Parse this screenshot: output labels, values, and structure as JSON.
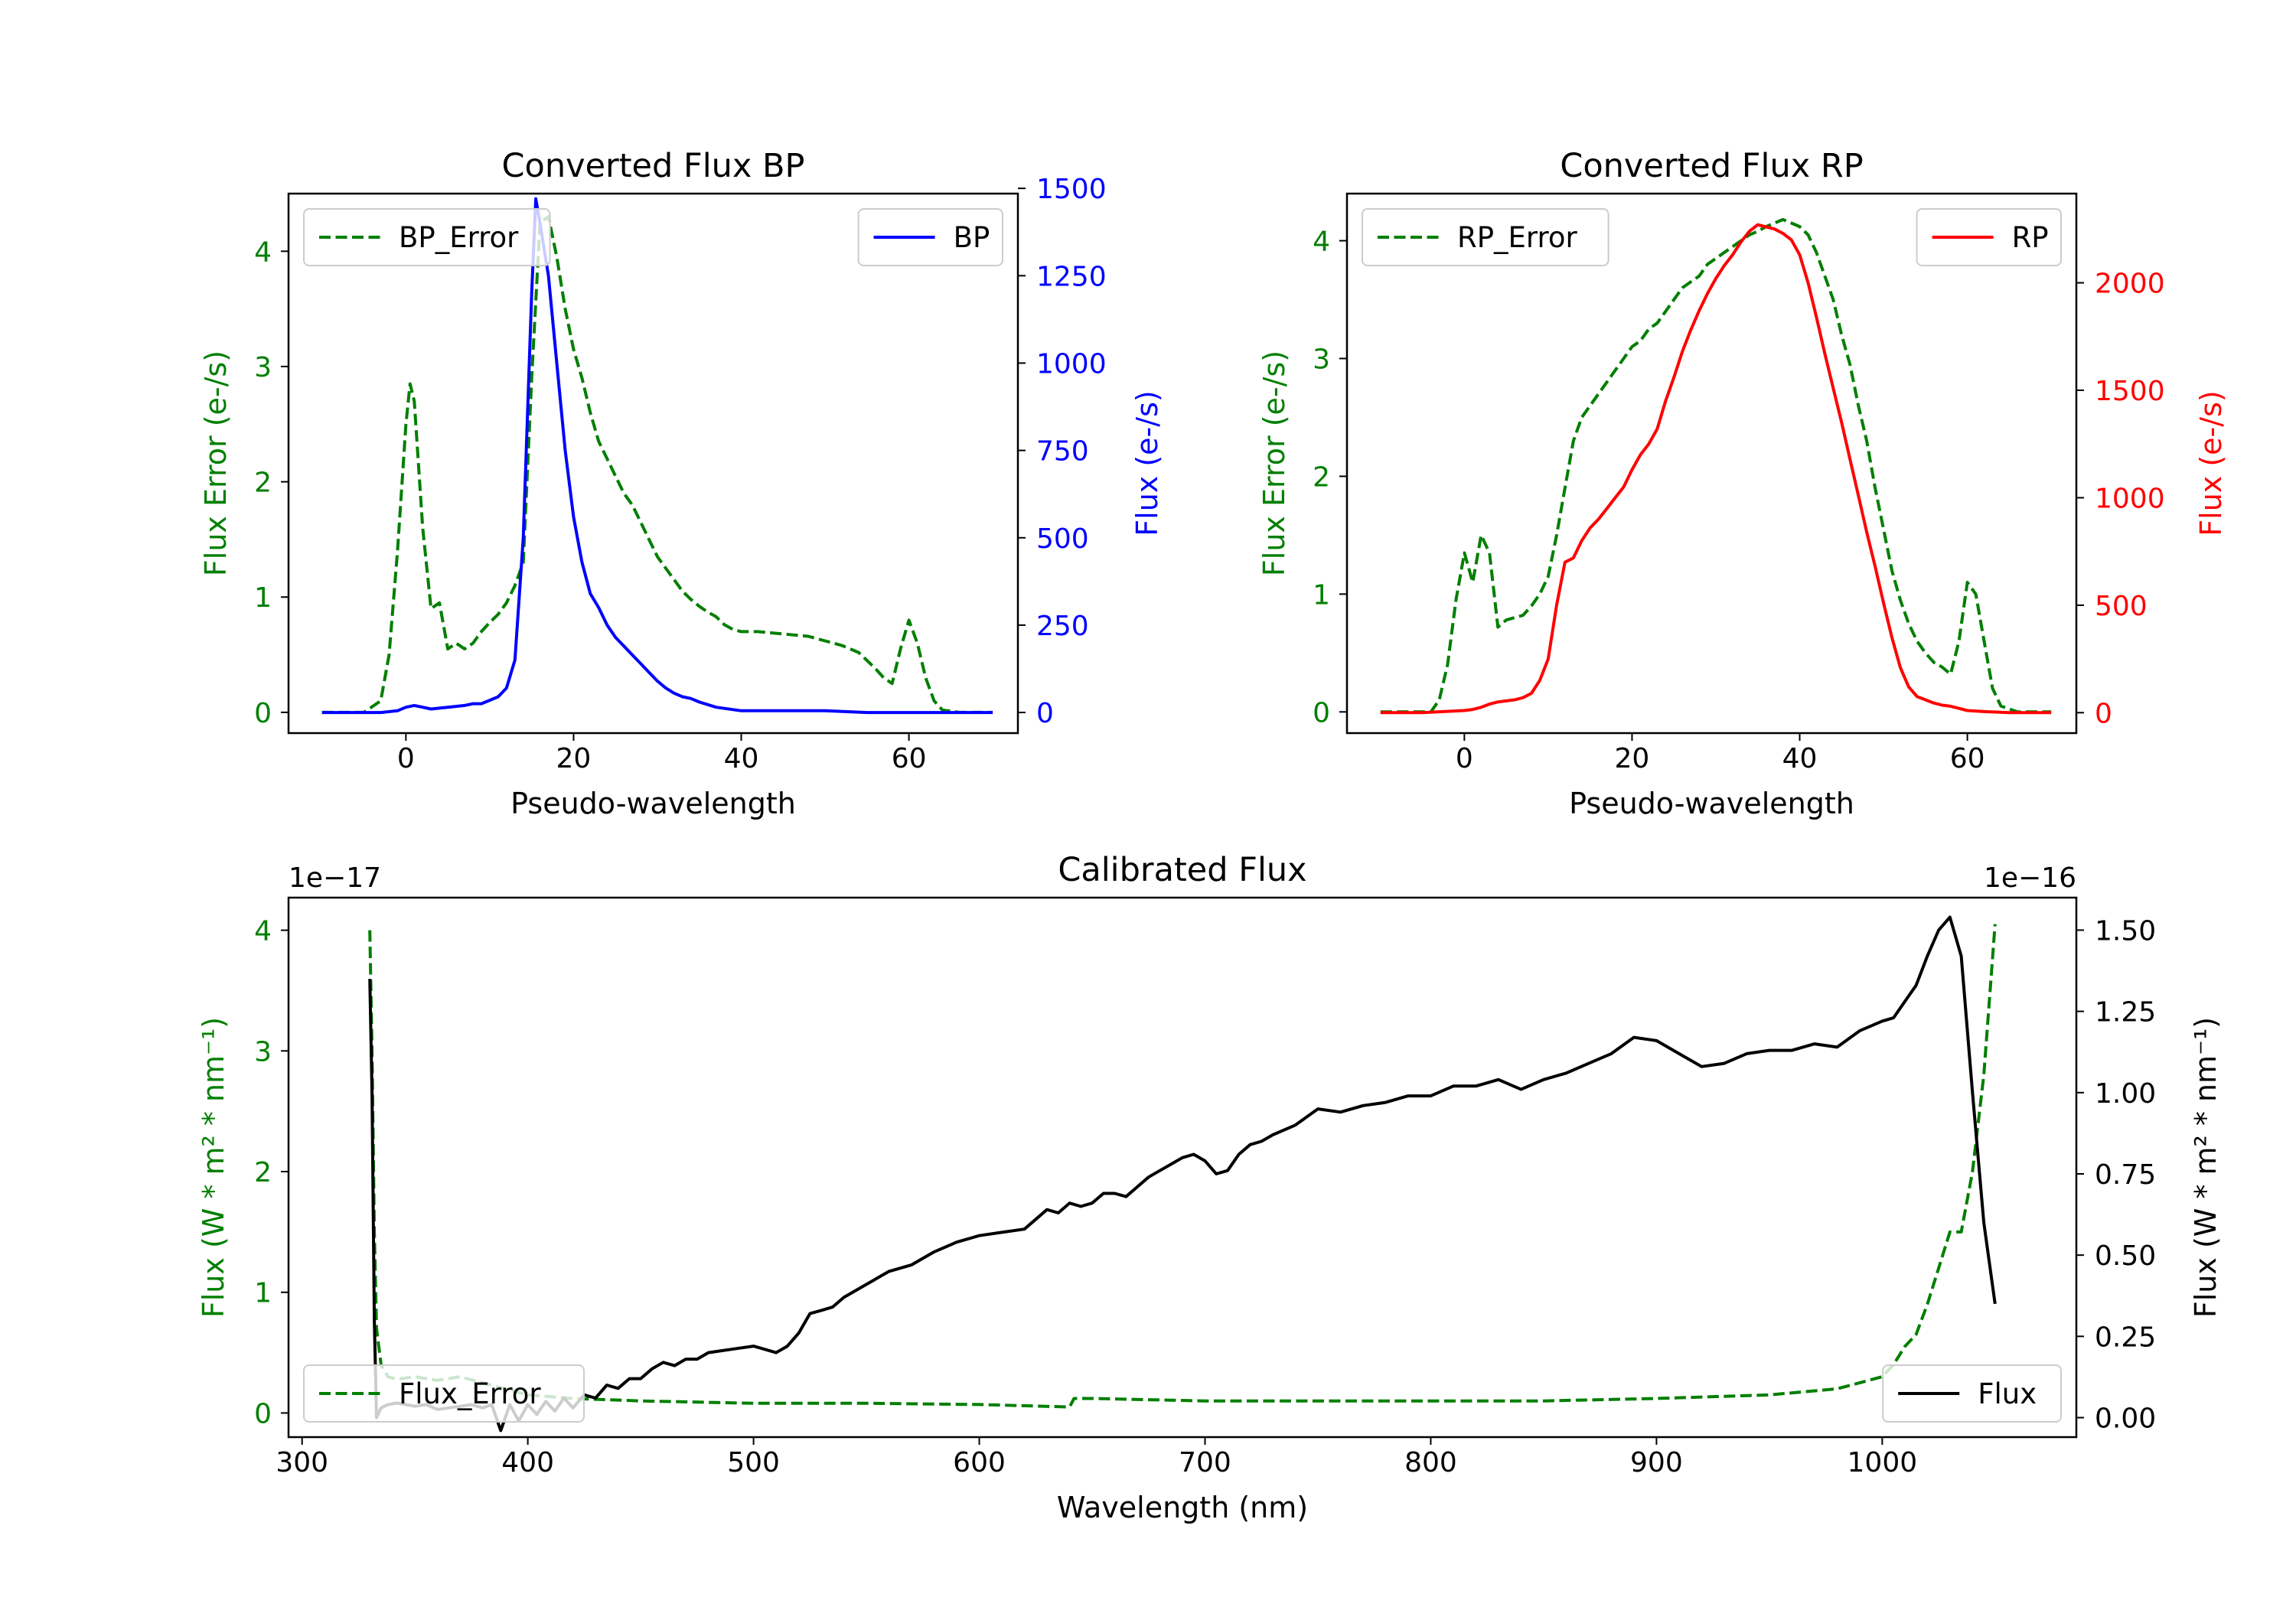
{
  "colors": {
    "bp": "#0000ff",
    "rp": "#ff0000",
    "error": "#007f00",
    "flux": "#000000",
    "axis": "#000000"
  },
  "chart_data": [
    {
      "id": "bp",
      "type": "line",
      "title": "Converted Flux BP",
      "xlabel": "Pseudo-wavelength",
      "ylabel_left": "Flux Error (e-/s)",
      "ylabel_right": "Flux (e-/s)",
      "xlim": [
        -14,
        73
      ],
      "ylim_left": [
        -0.18,
        4.5
      ],
      "ylim_right": [
        -59,
        1485
      ],
      "xticks": [
        0,
        20,
        40,
        60
      ],
      "yticks_left": [
        0,
        1,
        2,
        3,
        4
      ],
      "yticks_right": [
        0,
        250,
        500,
        750,
        1000,
        1250,
        1500
      ],
      "legend_left": "top-left",
      "legend_right": "top-right",
      "series": [
        {
          "name": "BP_Error",
          "axis": "left",
          "style": "dashed",
          "color": "#007f00",
          "x": [
            -10,
            -5,
            -3,
            -2,
            -1,
            0,
            0.5,
            1,
            2,
            3,
            4,
            5,
            6,
            7,
            8,
            9,
            10,
            11,
            12,
            13,
            14,
            15,
            16,
            17,
            18,
            19,
            20,
            21,
            22,
            23,
            24,
            25,
            26,
            27,
            28,
            29,
            30,
            31,
            32,
            33,
            34,
            35,
            36,
            37,
            38,
            39,
            40,
            42,
            45,
            48,
            50,
            52,
            54,
            56,
            57,
            58,
            59,
            60,
            61,
            62,
            63,
            64,
            66,
            70
          ],
          "y": [
            0,
            0,
            0.1,
            0.5,
            1.4,
            2.5,
            2.85,
            2.7,
            1.6,
            0.9,
            0.95,
            0.55,
            0.6,
            0.55,
            0.6,
            0.7,
            0.78,
            0.85,
            0.95,
            1.1,
            1.3,
            2.9,
            4.25,
            4.3,
            3.95,
            3.5,
            3.15,
            2.9,
            2.6,
            2.35,
            2.2,
            2.05,
            1.9,
            1.8,
            1.65,
            1.5,
            1.35,
            1.25,
            1.15,
            1.05,
            0.98,
            0.92,
            0.87,
            0.83,
            0.76,
            0.72,
            0.7,
            0.7,
            0.68,
            0.66,
            0.62,
            0.58,
            0.52,
            0.38,
            0.3,
            0.25,
            0.55,
            0.8,
            0.6,
            0.3,
            0.1,
            0.02,
            0,
            0
          ]
        },
        {
          "name": "BP",
          "axis": "right",
          "style": "solid",
          "color": "#0000ff",
          "x": [
            -10,
            -6,
            -3,
            -1,
            0,
            1,
            2,
            3,
            5,
            7,
            8,
            9,
            10,
            11,
            12,
            13,
            14,
            15,
            15.5,
            16,
            17,
            18,
            19,
            20,
            21,
            22,
            23,
            24,
            25,
            26,
            27,
            28,
            29,
            30,
            31,
            32,
            33,
            34,
            35,
            37,
            40,
            45,
            50,
            55,
            60,
            65,
            70
          ],
          "y": [
            0,
            0,
            0,
            5,
            15,
            20,
            15,
            10,
            15,
            20,
            25,
            25,
            35,
            45,
            70,
            150,
            500,
            1200,
            1470,
            1400,
            1250,
            1000,
            750,
            560,
            430,
            340,
            300,
            250,
            215,
            190,
            165,
            140,
            115,
            90,
            70,
            55,
            45,
            40,
            30,
            15,
            5,
            5,
            5,
            0,
            0,
            0,
            0
          ]
        }
      ]
    },
    {
      "id": "rp",
      "type": "line",
      "title": "Converted Flux RP",
      "xlabel": "Pseudo-wavelength",
      "ylabel_left": "Flux Error (e-/s)",
      "ylabel_right": "Flux (e-/s)",
      "xlim": [
        -14,
        73
      ],
      "ylim_left": [
        -0.18,
        4.4
      ],
      "ylim_right": [
        -95,
        2415
      ],
      "xticks": [
        0,
        20,
        40,
        60
      ],
      "yticks_left": [
        0,
        1,
        2,
        3,
        4
      ],
      "yticks_right": [
        0,
        500,
        1000,
        1500,
        2000
      ],
      "legend_left": "top-left",
      "legend_right": "top-right",
      "series": [
        {
          "name": "RP_Error",
          "axis": "left",
          "style": "dashed",
          "color": "#007f00",
          "x": [
            -10,
            -4,
            -3,
            -2,
            -1,
            0,
            1,
            2,
            3,
            4,
            5,
            6,
            7,
            8,
            9,
            10,
            11,
            12,
            13,
            14,
            15,
            16,
            17,
            18,
            19,
            20,
            21,
            22,
            23,
            24,
            25,
            26,
            27,
            28,
            29,
            30,
            31,
            32,
            33,
            34,
            35,
            36,
            37,
            38,
            39,
            40,
            41,
            42,
            43,
            44,
            45,
            46,
            47,
            48,
            49,
            50,
            51,
            52,
            53,
            54,
            55,
            56,
            57,
            58,
            59,
            60,
            61,
            62,
            63,
            64,
            66,
            70
          ],
          "y": [
            0,
            0,
            0.1,
            0.4,
            0.95,
            1.35,
            1.1,
            1.5,
            1.35,
            0.72,
            0.78,
            0.8,
            0.82,
            0.9,
            1.0,
            1.15,
            1.5,
            1.9,
            2.3,
            2.5,
            2.6,
            2.7,
            2.8,
            2.9,
            3.0,
            3.1,
            3.15,
            3.25,
            3.3,
            3.4,
            3.5,
            3.6,
            3.65,
            3.7,
            3.8,
            3.85,
            3.9,
            3.95,
            4.0,
            4.05,
            4.08,
            4.12,
            4.15,
            4.18,
            4.15,
            4.12,
            4.05,
            3.9,
            3.7,
            3.5,
            3.2,
            2.95,
            2.6,
            2.3,
            1.9,
            1.55,
            1.2,
            0.95,
            0.75,
            0.6,
            0.5,
            0.42,
            0.38,
            0.32,
            0.6,
            1.1,
            1.0,
            0.6,
            0.2,
            0.05,
            0,
            0
          ]
        },
        {
          "name": "RP",
          "axis": "right",
          "style": "solid",
          "color": "#ff0000",
          "x": [
            -10,
            -5,
            0,
            1,
            2,
            3,
            4,
            5,
            6,
            7,
            8,
            9,
            10,
            11,
            12,
            13,
            14,
            15,
            16,
            17,
            18,
            19,
            20,
            21,
            22,
            23,
            24,
            25,
            26,
            27,
            28,
            29,
            30,
            31,
            32,
            33,
            34,
            35,
            36,
            37,
            38,
            39,
            40,
            41,
            42,
            43,
            44,
            45,
            46,
            47,
            48,
            49,
            50,
            51,
            52,
            53,
            54,
            55,
            56,
            57,
            58,
            59,
            60,
            62,
            65,
            70
          ],
          "y": [
            0,
            0,
            10,
            15,
            25,
            40,
            50,
            55,
            60,
            70,
            90,
            150,
            250,
            500,
            700,
            720,
            800,
            860,
            900,
            950,
            1000,
            1050,
            1130,
            1200,
            1250,
            1320,
            1450,
            1560,
            1680,
            1780,
            1870,
            1950,
            2020,
            2080,
            2130,
            2190,
            2240,
            2270,
            2260,
            2250,
            2230,
            2200,
            2130,
            2000,
            1840,
            1670,
            1510,
            1350,
            1180,
            1010,
            840,
            680,
            510,
            350,
            210,
            120,
            75,
            60,
            45,
            35,
            30,
            20,
            10,
            5,
            0,
            0
          ]
        }
      ]
    },
    {
      "id": "calibrated",
      "type": "line",
      "title": "Calibrated Flux",
      "xlabel": "Wavelength (nm)",
      "ylabel_left": "Flux (W * m² * nm⁻¹)",
      "ylabel_right": "Flux (W * m² * nm⁻¹)",
      "left_offset_text": "1e−17",
      "right_offset_text": "1e−16",
      "xlim": [
        294,
        1086
      ],
      "ylim_left": [
        -0.2,
        4.27
      ],
      "ylim_right": [
        -0.06,
        1.6
      ],
      "xticks": [
        300,
        400,
        500,
        600,
        700,
        800,
        900,
        1000
      ],
      "yticks_left": [
        0,
        1,
        2,
        3,
        4
      ],
      "yticks_right": [
        0.0,
        0.25,
        0.5,
        0.75,
        1.0,
        1.25,
        1.5
      ],
      "ytick_labels_right": [
        "0.00",
        "0.25",
        "0.50",
        "0.75",
        "1.00",
        "1.25",
        "1.50"
      ],
      "legend_left": "bottom-left",
      "legend_right": "bottom-right",
      "series": [
        {
          "name": "Flux",
          "axis": "right",
          "style": "solid",
          "color": "#000000",
          "x": [
            330,
            331,
            332,
            333,
            335,
            338,
            342,
            346,
            350,
            355,
            360,
            365,
            370,
            375,
            380,
            384,
            388,
            392,
            396,
            400,
            404,
            408,
            412,
            416,
            420,
            425,
            430,
            435,
            440,
            445,
            450,
            455,
            460,
            465,
            470,
            475,
            480,
            490,
            500,
            510,
            515,
            520,
            525,
            530,
            535,
            540,
            550,
            560,
            570,
            580,
            590,
            600,
            610,
            620,
            630,
            635,
            640,
            645,
            650,
            655,
            660,
            665,
            670,
            675,
            680,
            685,
            690,
            695,
            700,
            705,
            710,
            715,
            720,
            725,
            730,
            740,
            750,
            760,
            770,
            780,
            790,
            800,
            810,
            820,
            830,
            840,
            850,
            860,
            870,
            880,
            890,
            900,
            910,
            920,
            930,
            940,
            950,
            960,
            970,
            980,
            990,
            1000,
            1005,
            1010,
            1015,
            1020,
            1025,
            1030,
            1035,
            1040,
            1045,
            1050
          ],
          "y": [
            1.35,
            1.0,
            0.3,
            0.0,
            0.03,
            0.04,
            0.045,
            0.04,
            0.035,
            0.04,
            0.025,
            0.03,
            0.035,
            0.04,
            0.03,
            0.04,
            -0.04,
            0.04,
            -0.01,
            0.04,
            0.01,
            0.05,
            0.02,
            0.06,
            0.03,
            0.07,
            0.06,
            0.1,
            0.09,
            0.12,
            0.12,
            0.15,
            0.17,
            0.16,
            0.18,
            0.18,
            0.2,
            0.21,
            0.22,
            0.2,
            0.22,
            0.26,
            0.32,
            0.33,
            0.34,
            0.37,
            0.41,
            0.45,
            0.47,
            0.51,
            0.54,
            0.56,
            0.57,
            0.58,
            0.64,
            0.63,
            0.66,
            0.65,
            0.66,
            0.69,
            0.69,
            0.68,
            0.71,
            0.74,
            0.76,
            0.78,
            0.8,
            0.81,
            0.79,
            0.75,
            0.76,
            0.81,
            0.84,
            0.85,
            0.87,
            0.9,
            0.95,
            0.94,
            0.96,
            0.97,
            0.99,
            0.99,
            1.02,
            1.02,
            1.04,
            1.01,
            1.04,
            1.06,
            1.09,
            1.12,
            1.17,
            1.16,
            1.12,
            1.08,
            1.09,
            1.12,
            1.13,
            1.13,
            1.15,
            1.14,
            1.19,
            1.22,
            1.23,
            1.28,
            1.33,
            1.42,
            1.5,
            1.54,
            1.42,
            1.0,
            0.6,
            0.35
          ]
        },
        {
          "name": "Flux_Error",
          "axis": "left",
          "style": "dashed",
          "color": "#007f00",
          "x": [
            330,
            331,
            332,
            333,
            335,
            338,
            342,
            350,
            360,
            370,
            380,
            390,
            400,
            420,
            450,
            500,
            550,
            600,
            640,
            642,
            650,
            700,
            750,
            800,
            850,
            900,
            950,
            980,
            1000,
            1005,
            1010,
            1015,
            1020,
            1025,
            1030,
            1035,
            1040,
            1045,
            1050
          ],
          "y": [
            4.0,
            3.0,
            1.5,
            0.7,
            0.4,
            0.3,
            0.28,
            0.3,
            0.27,
            0.3,
            0.25,
            0.2,
            0.15,
            0.12,
            0.1,
            0.08,
            0.08,
            0.07,
            0.05,
            0.12,
            0.12,
            0.1,
            0.1,
            0.1,
            0.1,
            0.12,
            0.15,
            0.2,
            0.3,
            0.4,
            0.55,
            0.65,
            0.9,
            1.2,
            1.5,
            1.5,
            2.0,
            2.8,
            4.05
          ]
        }
      ]
    }
  ]
}
